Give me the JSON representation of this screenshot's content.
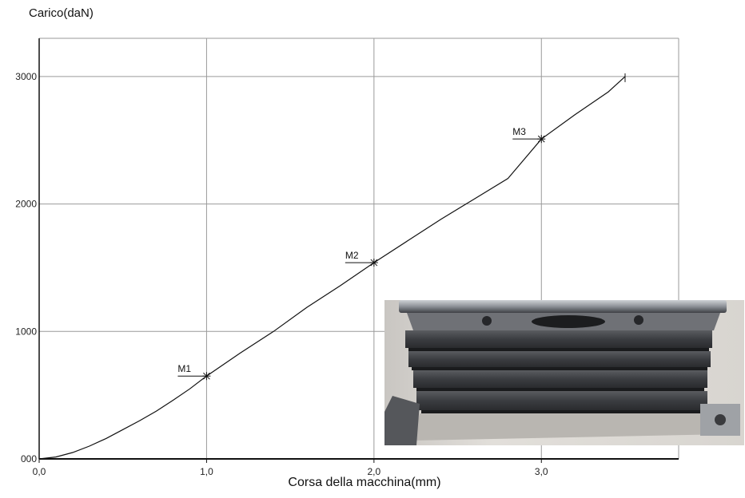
{
  "chart_data": {
    "type": "line",
    "title": "",
    "ylabel": "Carico(daN)",
    "xlabel": "Corsa della macchina(mm)",
    "xlim": [
      0,
      3.82
    ],
    "ylim": [
      0,
      3300
    ],
    "x_ticks": [
      0,
      1,
      2,
      3
    ],
    "x_tick_labels": [
      "0,0",
      "1,0",
      "2,0",
      "3,0"
    ],
    "y_ticks": [
      0,
      1000,
      2000,
      3000
    ],
    "y_tick_labels": [
      "000",
      "1000",
      "2000",
      "3000"
    ],
    "grid": true,
    "series": [
      {
        "points": [
          [
            0,
            0
          ],
          [
            0.1,
            15
          ],
          [
            0.2,
            50
          ],
          [
            0.3,
            100
          ],
          [
            0.4,
            160
          ],
          [
            0.5,
            230
          ],
          [
            0.6,
            300
          ],
          [
            0.7,
            375
          ],
          [
            0.8,
            460
          ],
          [
            0.9,
            550
          ],
          [
            1.0,
            650
          ],
          [
            1.2,
            830
          ],
          [
            1.4,
            1000
          ],
          [
            1.6,
            1190
          ],
          [
            1.8,
            1360
          ],
          [
            2.0,
            1540
          ],
          [
            2.2,
            1710
          ],
          [
            2.4,
            1880
          ],
          [
            2.6,
            2040
          ],
          [
            2.8,
            2200
          ],
          [
            3.0,
            2510
          ],
          [
            3.2,
            2700
          ],
          [
            3.4,
            2880
          ],
          [
            3.5,
            3000
          ]
        ]
      }
    ],
    "markers": [
      {
        "label": "M1",
        "x": 1.0,
        "y": 650
      },
      {
        "label": "M2",
        "x": 2.0,
        "y": 1540
      },
      {
        "label": "M3",
        "x": 3.0,
        "y": 2510
      }
    ]
  },
  "colors": {
    "line": "#111111",
    "grid": "#9a9a9a",
    "axis": "#111111"
  }
}
